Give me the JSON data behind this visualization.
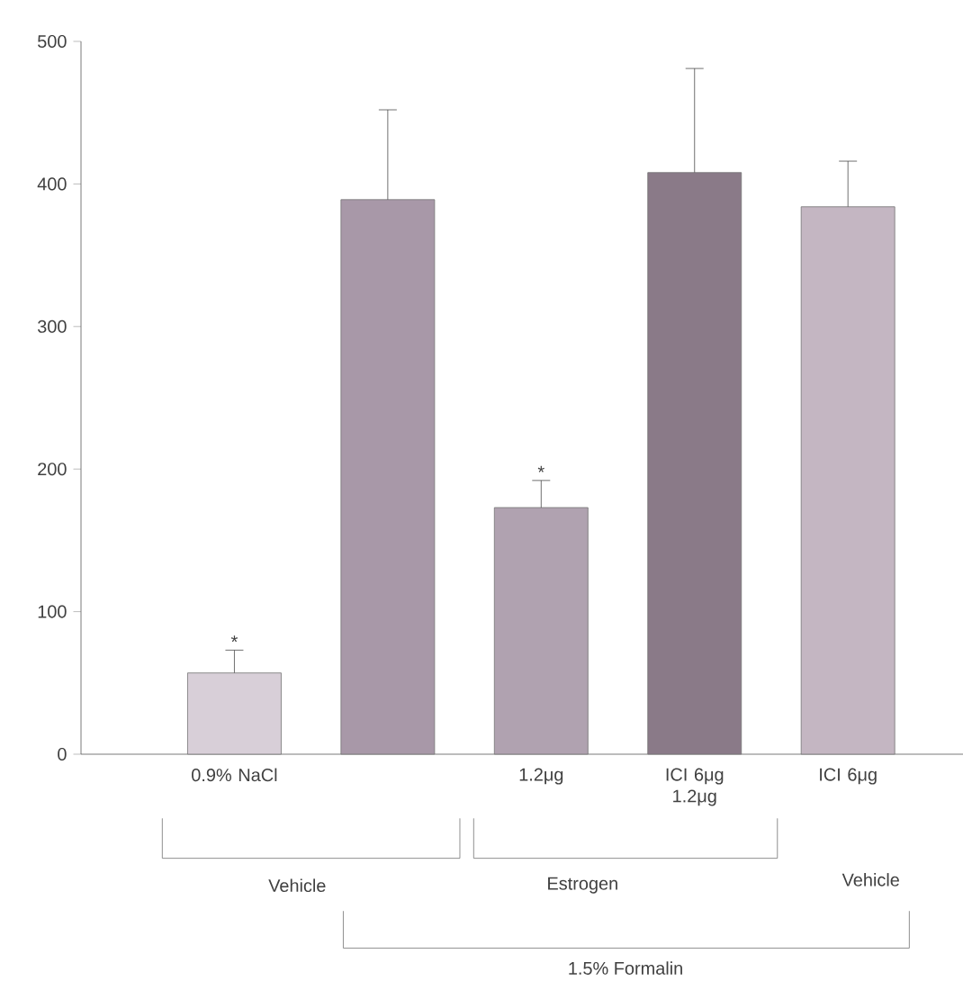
{
  "chart_data": {
    "type": "bar",
    "categories": [
      "0.9% NaCl",
      null,
      "1.2μg",
      "ICI 6μg 1.2μg",
      "ICI 6μg"
    ],
    "values": [
      57,
      389,
      173,
      408,
      384
    ],
    "errors": [
      16,
      63,
      19,
      73,
      32
    ],
    "colors": [
      "#d8cfd8",
      "#a898a8",
      "#b0a2b0",
      "#8a7a88",
      "#c4b6c2"
    ],
    "ylim": [
      0,
      500
    ],
    "yticks": [
      0,
      100,
      200,
      300,
      400,
      500
    ],
    "annotations": [
      "*",
      "*",
      "Vehicle",
      "Estrogen",
      "Vehicle",
      "1.5% Formalin"
    ]
  }
}
